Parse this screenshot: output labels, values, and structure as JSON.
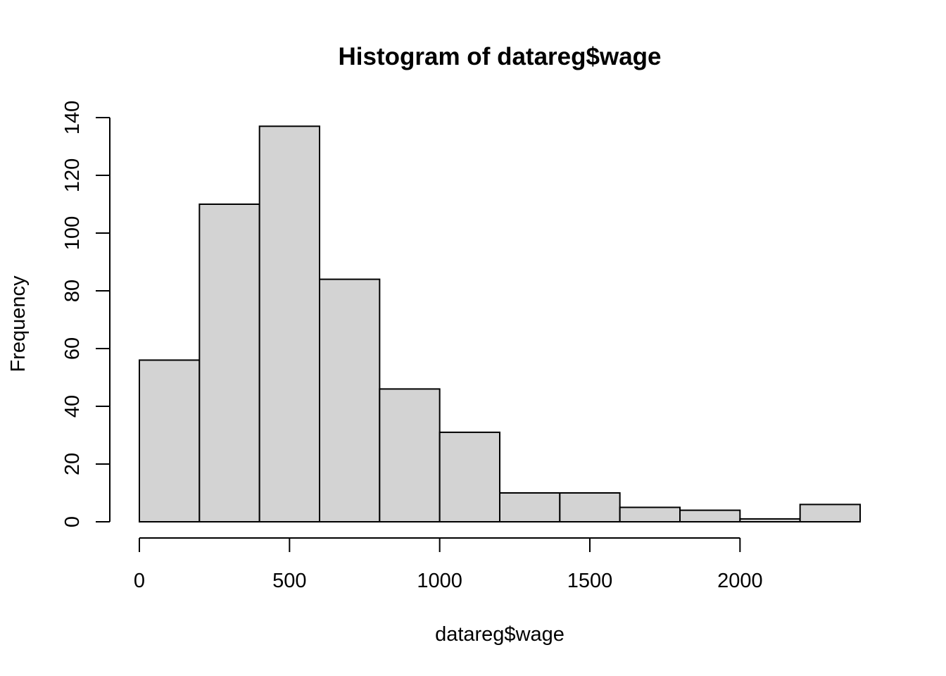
{
  "chart_data": {
    "type": "bar",
    "title": "Histogram of datareg$wage",
    "xlabel": "datareg$wage",
    "ylabel": "Frequency",
    "bin_edges": [
      0,
      200,
      400,
      600,
      800,
      1000,
      1200,
      1400,
      1600,
      1800,
      2000,
      2200,
      2400
    ],
    "values": [
      56,
      110,
      137,
      84,
      46,
      31,
      10,
      10,
      5,
      4,
      1,
      6
    ],
    "xlim": [
      0,
      2400
    ],
    "ylim": [
      0,
      140
    ],
    "x_ticks": [
      0,
      500,
      1000,
      1500,
      2000
    ],
    "y_ticks": [
      0,
      20,
      40,
      60,
      80,
      100,
      120,
      140
    ],
    "bar_color": "#d3d3d3",
    "grid": false,
    "legend": "none"
  }
}
